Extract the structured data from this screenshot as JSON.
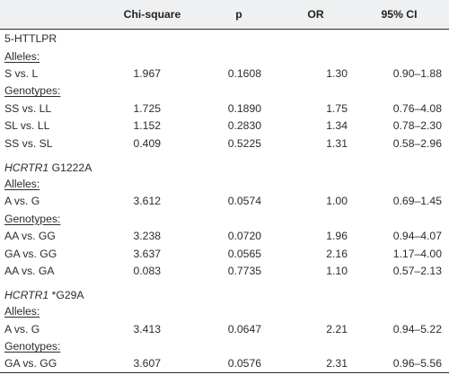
{
  "headers": [
    "",
    "Chi-square",
    "p",
    "OR",
    "95% CI"
  ],
  "groups": [
    {
      "title_italic": "",
      "title_rest": "5-HTTLPR",
      "alleles_label": "Alleles:",
      "alleles": [
        {
          "label": "S vs. L",
          "chi": "1.967",
          "p": "0.1608",
          "or": "1.30",
          "ci": "0.90–1.88"
        }
      ],
      "genotypes_label": "Genotypes:",
      "genotypes": [
        {
          "label": "SS vs. LL",
          "chi": "1.725",
          "p": "0.1890",
          "or": "1.75",
          "ci": "0.76–4.08"
        },
        {
          "label": "SL vs. LL",
          "chi": "1.152",
          "p": "0.2830",
          "or": "1.34",
          "ci": "0.78–2.30"
        },
        {
          "label": "SS vs. SL",
          "chi": "0.409",
          "p": "0.5225",
          "or": "1.31",
          "ci": "0.58–2.96"
        }
      ]
    },
    {
      "title_italic": "HCRTR1",
      "title_rest": " G1222A",
      "alleles_label": "Alleles:",
      "alleles": [
        {
          "label": "A vs. G",
          "chi": "3.612",
          "p": "0.0574",
          "or": "1.00",
          "ci": "0.69–1.45"
        }
      ],
      "genotypes_label": "Genotypes:",
      "genotypes": [
        {
          "label": "AA vs. GG",
          "chi": "3.238",
          "p": "0.0720",
          "or": "1.96",
          "ci": "0.94–4.07"
        },
        {
          "label": "GA vs. GG",
          "chi": "3.637",
          "p": "0.0565",
          "or": "2.16",
          "ci": "1.17–4.00"
        },
        {
          "label": "AA vs. GA",
          "chi": "0.083",
          "p": "0.7735",
          "or": "1.10",
          "ci": "0.57–2.13"
        }
      ]
    },
    {
      "title_italic": "HCRTR1",
      "title_rest": " *G29A",
      "alleles_label": "Alleles:",
      "alleles": [
        {
          "label": "A vs. G",
          "chi": "3.413",
          "p": "0.0647",
          "or": "2.21",
          "ci": "0.94–5.22"
        }
      ],
      "genotypes_label": "Genotypes:",
      "genotypes": [
        {
          "label": "GA vs. GG",
          "chi": "3.607",
          "p": "0.0576",
          "or": "2.31",
          "ci": "0.96–5.56"
        }
      ]
    }
  ]
}
